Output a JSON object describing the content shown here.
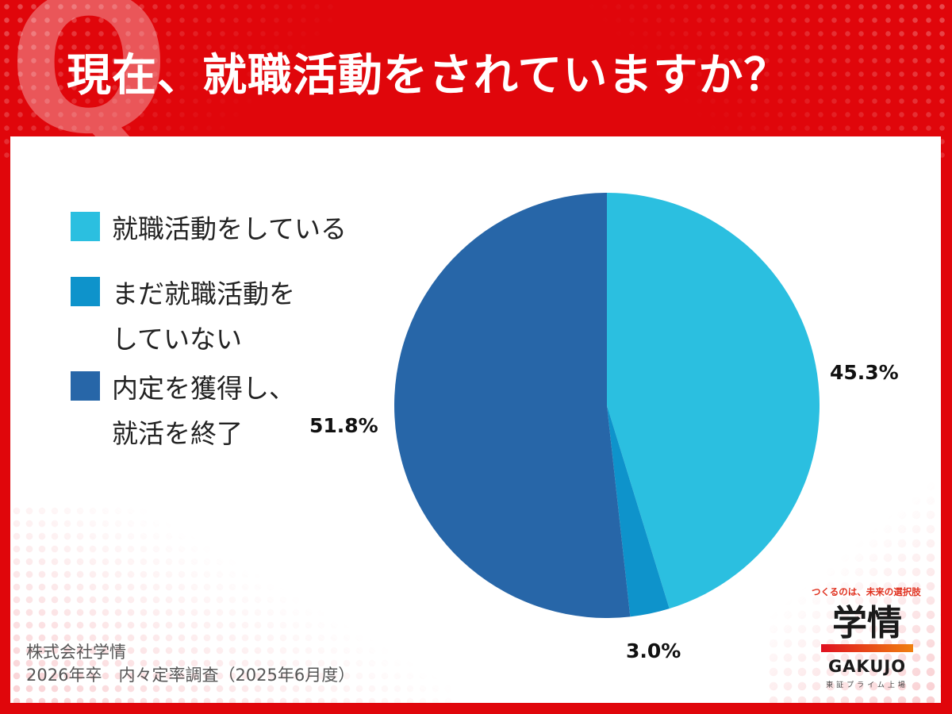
{
  "header": {
    "q_mark": "Q",
    "title": "現在、就職活動をされていますか？"
  },
  "legend": {
    "items": [
      {
        "label_lines": [
          "就職活動をしている"
        ],
        "color": "#2bbfe0"
      },
      {
        "label_lines": [
          "まだ就職活動を",
          "していない"
        ],
        "color": "#0e93cb"
      },
      {
        "label_lines": [
          "内定を獲得し、",
          "就活を終了"
        ],
        "color": "#2766a8"
      }
    ]
  },
  "labels": {
    "searching": "45.3%",
    "not_started": "3.0%",
    "finished": "51.8%"
  },
  "footer": {
    "line1": "株式会社学情",
    "line2": "2026年卒　内々定率調査（2025年6月度）"
  },
  "logo": {
    "tagline": "つくるのは、未来の選択肢",
    "name": "学情",
    "name_en": "GAKUJO",
    "listing": "東証プライム上場"
  },
  "colors": {
    "background_red": "#e0060b",
    "panel": "#ffffff",
    "slice_searching": "#2bbfe0",
    "slice_not_started": "#0e93cb",
    "slice_finished": "#2766a8"
  },
  "chart_data": {
    "type": "pie",
    "title": "現在、就職活動をされていますか？",
    "categories": [
      "就職活動をしている",
      "まだ就職活動をしていない",
      "内定を獲得し、就活を終了"
    ],
    "values": [
      45.3,
      3.0,
      51.8
    ],
    "unit": "%",
    "start_angle": "12 o'clock, clockwise",
    "legend_position": "left",
    "data_labels": [
      "45.3%",
      "3.0%",
      "51.8%"
    ],
    "source": "株式会社学情 2026年卒　内々定率調査（2025年6月度）"
  }
}
